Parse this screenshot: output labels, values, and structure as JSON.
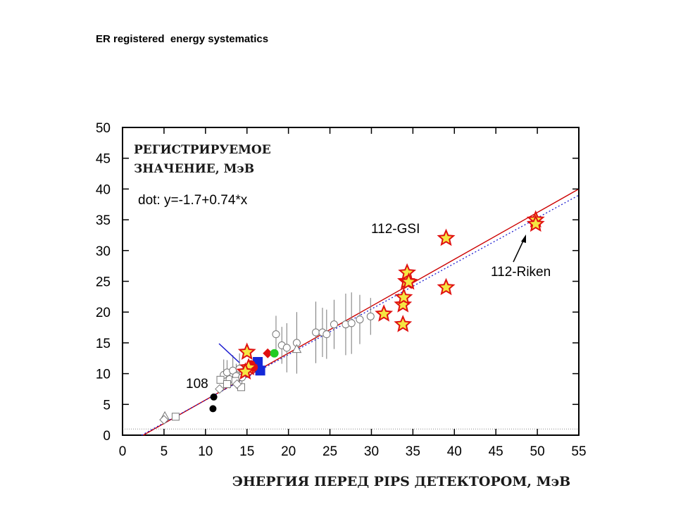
{
  "slide_title": "ER registered  energy systematics",
  "chart_data": {
    "type": "scatter",
    "xlabel": "ЭНЕРГИЯ ПЕРЕД PIPS ДЕТЕКТОРОМ, МэВ",
    "ylabel_line1": "РЕГИСТРИРУЕМОЕ",
    "ylabel_line2": "ЗНАЧЕНИЕ, МэВ",
    "fit_text": "dot: y=-1.7+0.74*x",
    "xlim": [
      0,
      55
    ],
    "ylim": [
      0,
      50
    ],
    "x_ticks": [
      0,
      5,
      10,
      15,
      20,
      25,
      30,
      35,
      40,
      45,
      50,
      55
    ],
    "y_ticks": [
      0,
      5,
      10,
      15,
      20,
      25,
      30,
      35,
      40,
      45,
      50
    ],
    "grid": false,
    "annotations": {
      "gsi": "112-GSI",
      "riken": "112-Riken",
      "label_108": "108"
    },
    "colors": {
      "red_line": "#cc0000",
      "blue_dotted": "#1a1ad0",
      "star_fill": "#f5e642",
      "star_edge": "#e01010",
      "blue_square": "#1428d8",
      "green": "#22cc22",
      "errorbar": "#777777"
    },
    "lines": [
      {
        "style": "solid-red",
        "points": [
          [
            2.5,
            0
          ],
          [
            55,
            40
          ]
        ]
      },
      {
        "style": "dotted-blue",
        "points": [
          [
            2.3,
            0
          ],
          [
            55,
            39
          ]
        ]
      },
      {
        "style": "dotted-gray-horizontal",
        "points": [
          [
            0,
            1
          ],
          [
            55,
            1
          ]
        ]
      }
    ],
    "series": [
      {
        "name": "stars",
        "marker": "star",
        "points": [
          [
            15.0,
            13.5
          ],
          [
            15.2,
            11.0
          ],
          [
            14.8,
            10.3
          ],
          [
            31.5,
            19.7
          ],
          [
            33.8,
            18.0
          ],
          [
            33.8,
            21.2
          ],
          [
            33.9,
            22.4
          ],
          [
            34.2,
            25.0
          ],
          [
            34.3,
            26.4
          ],
          [
            34.5,
            24.9
          ],
          [
            39.0,
            32.0
          ],
          [
            39.0,
            24.0
          ],
          [
            49.8,
            35.0
          ],
          [
            49.8,
            34.3
          ]
        ]
      },
      {
        "name": "open-circles",
        "marker": "circle-open",
        "points": [
          [
            12.2,
            9.8
          ],
          [
            12.6,
            10.2
          ],
          [
            12.9,
            9.1
          ],
          [
            13.3,
            10.5
          ],
          [
            13.7,
            9.6
          ],
          [
            14.1,
            10.8
          ],
          [
            14.4,
            9.4
          ],
          [
            18.5,
            16.4
          ],
          [
            19.2,
            14.6
          ],
          [
            19.8,
            14.2
          ],
          [
            21.0,
            15.0
          ],
          [
            23.3,
            16.7
          ],
          [
            24.1,
            16.7
          ],
          [
            24.6,
            16.4
          ],
          [
            25.5,
            18.0
          ],
          [
            26.9,
            18.0
          ],
          [
            27.6,
            18.2
          ],
          [
            28.6,
            18.8
          ],
          [
            29.9,
            19.3
          ]
        ],
        "error": [
          2.5,
          2.0,
          1.5,
          2.5,
          2.0,
          2.5,
          2.0,
          3.0,
          3.0,
          4.0,
          5.0,
          5.0,
          4.0,
          4.0,
          4.0,
          5.0,
          5.0,
          4.0,
          3.0
        ]
      },
      {
        "name": "open-squares",
        "marker": "square-open",
        "points": [
          [
            6.4,
            3.0
          ],
          [
            11.8,
            9.0
          ],
          [
            12.6,
            8.3
          ],
          [
            13.6,
            8.8
          ],
          [
            14.3,
            7.8
          ]
        ]
      },
      {
        "name": "open-triangles",
        "marker": "triangle-open",
        "points": [
          [
            5.1,
            3.1
          ],
          [
            21.0,
            14.0
          ],
          [
            15.3,
            11.0
          ]
        ]
      },
      {
        "name": "open-diamonds",
        "marker": "diamond-open",
        "points": [
          [
            5.0,
            2.5
          ],
          [
            11.7,
            7.5
          ],
          [
            13.8,
            8.3
          ]
        ]
      },
      {
        "name": "blue-squares",
        "marker": "square-filled",
        "points": [
          [
            16.3,
            11.9
          ],
          [
            16.6,
            10.5
          ]
        ]
      },
      {
        "name": "red-circles",
        "marker": "circle-red",
        "points": [
          [
            15.5,
            11.5
          ],
          [
            15.8,
            11.0
          ]
        ]
      },
      {
        "name": "green-circle",
        "marker": "circle-green",
        "points": [
          [
            18.3,
            13.3
          ]
        ]
      },
      {
        "name": "red-diamond",
        "marker": "diamond-red",
        "points": [
          [
            17.5,
            13.3
          ]
        ]
      },
      {
        "name": "black-dots",
        "marker": "circle-black",
        "points": [
          [
            11.0,
            6.2
          ],
          [
            10.9,
            4.3
          ]
        ]
      }
    ]
  }
}
